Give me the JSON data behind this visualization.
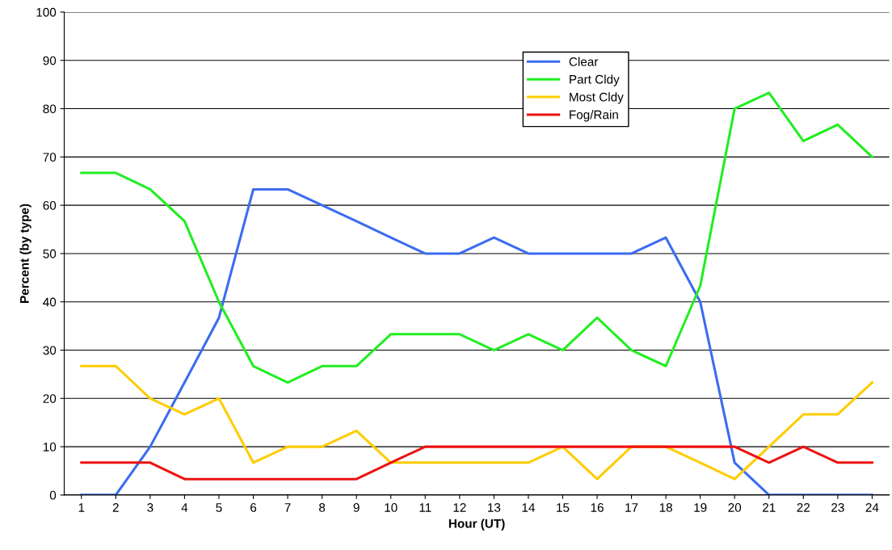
{
  "chart_data": {
    "type": "line",
    "xlabel": "Hour (UT)",
    "ylabel": "Percent (by type)",
    "categories": [
      "1",
      "2",
      "3",
      "4",
      "5",
      "6",
      "7",
      "8",
      "9",
      "10",
      "11",
      "12",
      "13",
      "14",
      "15",
      "16",
      "17",
      "18",
      "19",
      "20",
      "21",
      "22",
      "23",
      "24"
    ],
    "series": [
      {
        "name": "Clear",
        "color": "#3b6cf0",
        "values": [
          0,
          0,
          10,
          23.3,
          36.7,
          63.3,
          63.3,
          60,
          56.7,
          53.3,
          50,
          50,
          53.3,
          50,
          50,
          50,
          50,
          53.3,
          40,
          6.7,
          0,
          0,
          0,
          0
        ]
      },
      {
        "name": "Part Cldy",
        "color": "#22ee22",
        "values": [
          66.7,
          66.7,
          63.3,
          56.7,
          40,
          26.7,
          23.3,
          26.7,
          26.7,
          33.3,
          33.3,
          33.3,
          30,
          33.3,
          30,
          36.7,
          30,
          26.7,
          43.3,
          80,
          83.3,
          73.3,
          76.7,
          70
        ]
      },
      {
        "name": "Most Cldy",
        "color": "#ffcc00",
        "values": [
          26.7,
          26.7,
          20,
          16.7,
          20,
          6.7,
          10,
          10,
          13.3,
          6.7,
          6.7,
          6.7,
          6.7,
          6.7,
          10,
          3.3,
          10,
          10,
          6.7,
          3.3,
          10,
          16.7,
          16.7,
          23.3
        ]
      },
      {
        "name": "Fog/Rain",
        "color": "#ee1111",
        "values": [
          6.7,
          6.7,
          6.7,
          3.3,
          3.3,
          3.3,
          3.3,
          3.3,
          3.3,
          6.7,
          10,
          10,
          10,
          10,
          10,
          10,
          10,
          10,
          10,
          10,
          6.7,
          10,
          6.7,
          6.7
        ]
      }
    ],
    "ylim": [
      0,
      100
    ],
    "yticks": [
      0,
      10,
      20,
      30,
      40,
      50,
      60,
      70,
      80,
      90,
      100
    ],
    "grid": "y",
    "legend": "top",
    "marker": "none",
    "line_style": "solid"
  }
}
